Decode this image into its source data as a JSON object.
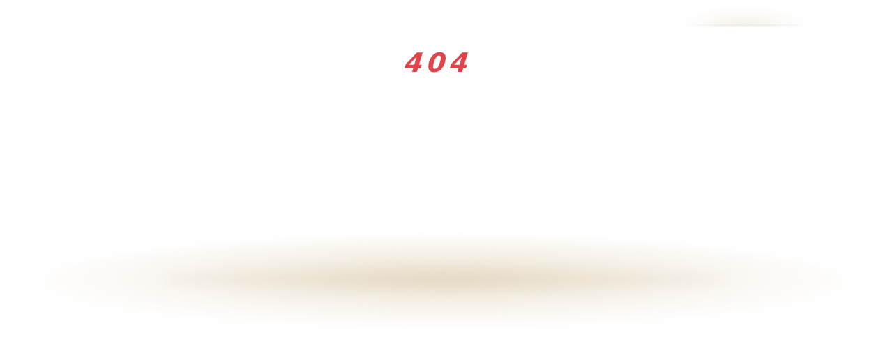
{
  "error": {
    "code": "404"
  },
  "colors": {
    "error_code": "#e0434a",
    "background": "#ffffff",
    "shadow": "#e2d6be"
  }
}
